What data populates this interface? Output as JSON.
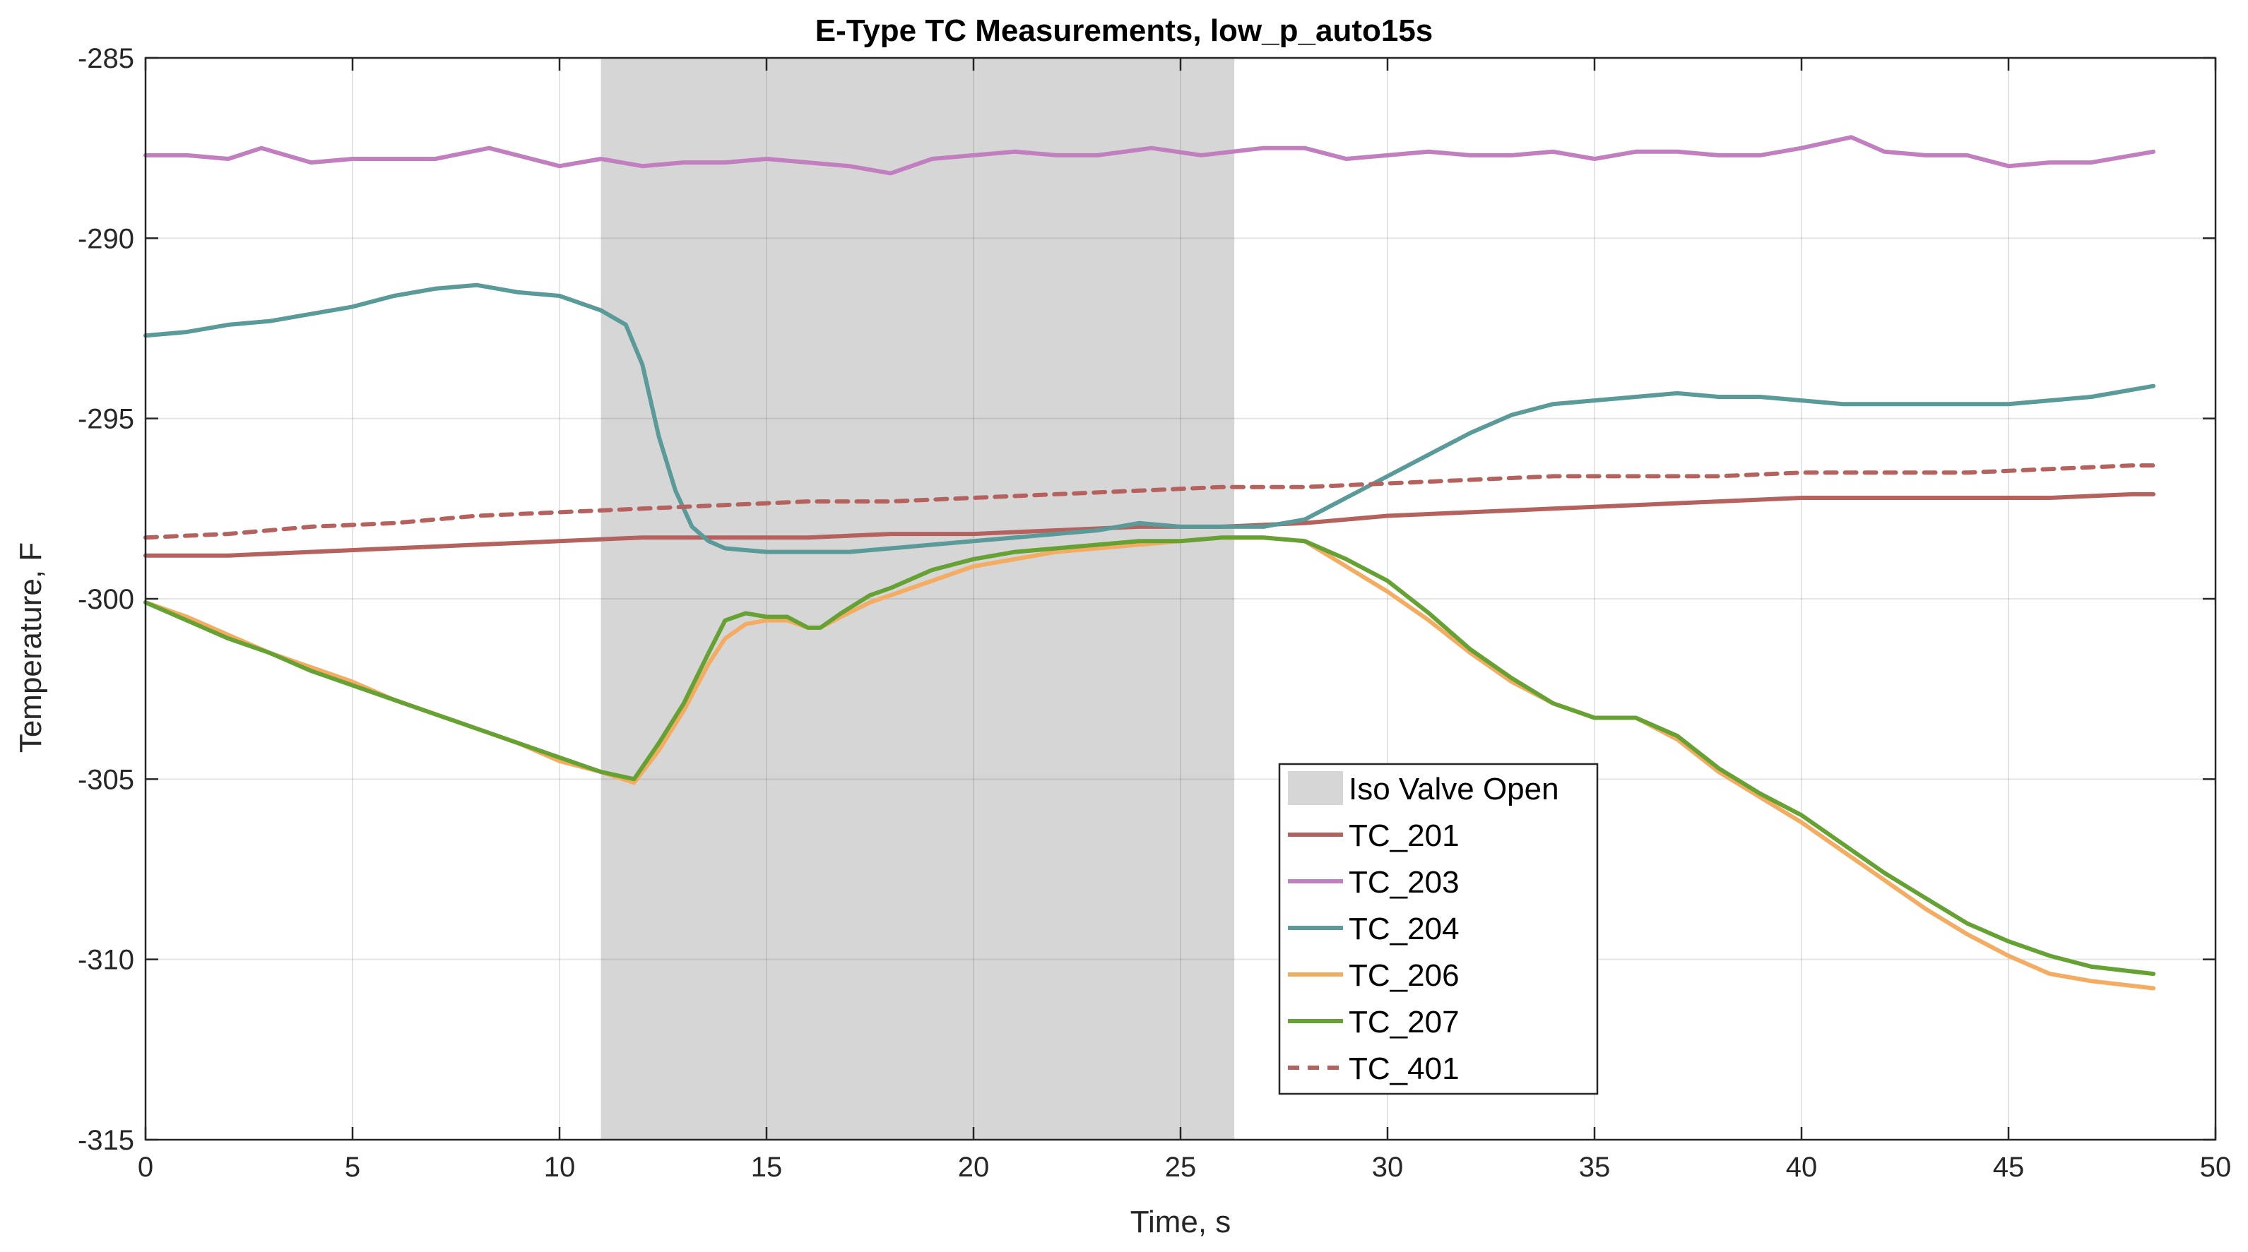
{
  "chart_data": {
    "type": "line",
    "title": "E-Type TC Measurements, low_p_auto15s",
    "xlabel": "Time, s",
    "ylabel": "Temperature, F",
    "xlim": [
      0,
      50
    ],
    "ylim": [
      -315,
      -285
    ],
    "xticks": [
      0,
      5,
      10,
      15,
      20,
      25,
      30,
      35,
      40,
      45,
      50
    ],
    "yticks": [
      -315,
      -310,
      -305,
      -300,
      -295,
      -290,
      -285
    ],
    "grid": true,
    "legend_position": "bottom-center",
    "shaded_region": {
      "name": "Iso Valve Open",
      "x_start": 11.0,
      "x_end": 26.3,
      "color": "#d6d6d6"
    },
    "series": [
      {
        "name": "TC_201",
        "color": "#b5625f",
        "dash": false,
        "x": [
          0,
          2,
          4,
          6,
          8,
          10,
          12,
          14,
          16,
          18,
          20,
          22,
          24,
          26,
          28,
          30,
          32,
          34,
          36,
          38,
          40,
          42,
          44,
          46,
          48,
          48.5
        ],
        "y": [
          -298.8,
          -298.8,
          -298.7,
          -298.6,
          -298.5,
          -298.4,
          -298.3,
          -298.3,
          -298.3,
          -298.2,
          -298.2,
          -298.1,
          -298.0,
          -298.0,
          -297.9,
          -297.7,
          -297.6,
          -297.5,
          -297.4,
          -297.3,
          -297.2,
          -297.2,
          -297.2,
          -297.2,
          -297.1,
          -297.1
        ]
      },
      {
        "name": "TC_203",
        "color": "#c17fc0",
        "dash": false,
        "x": [
          0,
          1,
          2,
          2.8,
          4,
          5,
          6,
          7,
          8.3,
          10,
          11,
          12,
          13,
          14,
          15,
          16,
          17,
          18,
          19,
          20,
          21,
          22,
          23,
          24.3,
          25.5,
          27,
          28,
          29,
          30,
          31,
          32,
          33,
          34,
          35,
          36,
          37,
          38,
          39,
          40,
          41.2,
          42,
          43,
          44,
          45,
          46,
          47,
          48.5
        ],
        "y": [
          -287.7,
          -287.7,
          -287.8,
          -287.5,
          -287.9,
          -287.8,
          -287.8,
          -287.8,
          -287.5,
          -288.0,
          -287.8,
          -288.0,
          -287.9,
          -287.9,
          -287.8,
          -287.9,
          -288.0,
          -288.2,
          -287.8,
          -287.7,
          -287.6,
          -287.7,
          -287.7,
          -287.5,
          -287.7,
          -287.5,
          -287.5,
          -287.8,
          -287.7,
          -287.6,
          -287.7,
          -287.7,
          -287.6,
          -287.8,
          -287.6,
          -287.6,
          -287.7,
          -287.7,
          -287.5,
          -287.2,
          -287.6,
          -287.7,
          -287.7,
          -288.0,
          -287.9,
          -287.9,
          -287.6
        ]
      },
      {
        "name": "TC_204",
        "color": "#5a9b99",
        "dash": false,
        "x": [
          0,
          1,
          2,
          3,
          4,
          5,
          6,
          7,
          8,
          9,
          10,
          11,
          11.6,
          12.0,
          12.4,
          12.8,
          13.2,
          13.6,
          14.0,
          15,
          16,
          17,
          18,
          19,
          20,
          21,
          22,
          23,
          24,
          25,
          26,
          27,
          28,
          29,
          30,
          31,
          32,
          33,
          34,
          35,
          36,
          37,
          38,
          39,
          40,
          41,
          42,
          43,
          44,
          45,
          46,
          47,
          48.5
        ],
        "y": [
          -292.7,
          -292.6,
          -292.4,
          -292.3,
          -292.1,
          -291.9,
          -291.6,
          -291.4,
          -291.3,
          -291.5,
          -291.6,
          -292.0,
          -292.4,
          -293.5,
          -295.5,
          -297.0,
          -298.0,
          -298.4,
          -298.6,
          -298.7,
          -298.7,
          -298.7,
          -298.6,
          -298.5,
          -298.4,
          -298.3,
          -298.2,
          -298.1,
          -297.9,
          -298.0,
          -298.0,
          -298.0,
          -297.8,
          -297.2,
          -296.6,
          -296.0,
          -295.4,
          -294.9,
          -294.6,
          -294.5,
          -294.4,
          -294.3,
          -294.4,
          -294.4,
          -294.5,
          -294.6,
          -294.6,
          -294.6,
          -294.6,
          -294.6,
          -294.5,
          -294.4,
          -294.1
        ]
      },
      {
        "name": "TC_206",
        "color": "#f4ac62",
        "dash": false,
        "x": [
          0,
          1,
          2,
          3,
          4,
          5,
          6,
          7,
          8,
          9,
          10,
          11,
          11.8,
          12.4,
          13,
          13.6,
          14,
          14.5,
          15,
          15.5,
          16,
          16.3,
          16.8,
          17.5,
          18,
          19,
          20,
          21,
          22,
          23,
          24,
          25,
          26,
          27,
          28,
          29,
          30,
          31,
          32,
          33,
          34,
          35,
          36,
          37,
          38,
          39,
          40,
          41,
          42,
          43,
          44,
          45,
          46,
          47,
          48.5
        ],
        "y": [
          -300.1,
          -300.5,
          -301.0,
          -301.5,
          -301.9,
          -302.3,
          -302.8,
          -303.2,
          -303.6,
          -304.0,
          -304.5,
          -304.8,
          -305.1,
          -304.2,
          -303.1,
          -301.8,
          -301.1,
          -300.7,
          -300.6,
          -300.6,
          -300.8,
          -300.8,
          -300.5,
          -300.1,
          -299.9,
          -299.5,
          -299.1,
          -298.9,
          -298.7,
          -298.6,
          -298.5,
          -298.4,
          -298.3,
          -298.3,
          -298.4,
          -299.1,
          -299.8,
          -300.6,
          -301.5,
          -302.3,
          -302.9,
          -303.3,
          -303.3,
          -303.9,
          -304.8,
          -305.5,
          -306.2,
          -307.0,
          -307.8,
          -308.6,
          -309.3,
          -309.9,
          -310.4,
          -310.6,
          -310.8
        ]
      },
      {
        "name": "TC_207",
        "color": "#65a133",
        "dash": false,
        "x": [
          0,
          1,
          2,
          3,
          4,
          5,
          6,
          7,
          8,
          9,
          10,
          11,
          11.8,
          12.4,
          13,
          13.6,
          14,
          14.5,
          15,
          15.5,
          16,
          16.3,
          16.8,
          17.5,
          18,
          19,
          20,
          21,
          22,
          23,
          24,
          25,
          26,
          27,
          28,
          29,
          30,
          31,
          32,
          33,
          34,
          35,
          36,
          37,
          38,
          39,
          40,
          41,
          42,
          43,
          44,
          45,
          46,
          47,
          48.5
        ],
        "y": [
          -300.1,
          -300.6,
          -301.1,
          -301.5,
          -302.0,
          -302.4,
          -302.8,
          -303.2,
          -303.6,
          -304.0,
          -304.4,
          -304.8,
          -305.0,
          -304.0,
          -302.9,
          -301.5,
          -300.6,
          -300.4,
          -300.5,
          -300.5,
          -300.8,
          -300.8,
          -300.4,
          -299.9,
          -299.7,
          -299.2,
          -298.9,
          -298.7,
          -298.6,
          -298.5,
          -298.4,
          -298.4,
          -298.3,
          -298.3,
          -298.4,
          -298.9,
          -299.5,
          -300.4,
          -301.4,
          -302.2,
          -302.9,
          -303.3,
          -303.3,
          -303.8,
          -304.7,
          -305.4,
          -306.0,
          -306.8,
          -307.6,
          -308.3,
          -309.0,
          -309.5,
          -309.9,
          -310.2,
          -310.4
        ]
      },
      {
        "name": "TC_401",
        "color": "#b5625f",
        "dash": true,
        "x": [
          0,
          2,
          4,
          6,
          8,
          10,
          12,
          14,
          16,
          18,
          20,
          22,
          24,
          26,
          28,
          30,
          32,
          34,
          36,
          38,
          40,
          42,
          44,
          46,
          48,
          48.5
        ],
        "y": [
          -298.3,
          -298.2,
          -298.0,
          -297.9,
          -297.7,
          -297.6,
          -297.5,
          -297.4,
          -297.3,
          -297.3,
          -297.2,
          -297.1,
          -297.0,
          -296.9,
          -296.9,
          -296.8,
          -296.7,
          -296.6,
          -296.6,
          -296.6,
          -296.5,
          -296.5,
          -296.5,
          -296.4,
          -296.3,
          -296.3
        ]
      }
    ]
  }
}
